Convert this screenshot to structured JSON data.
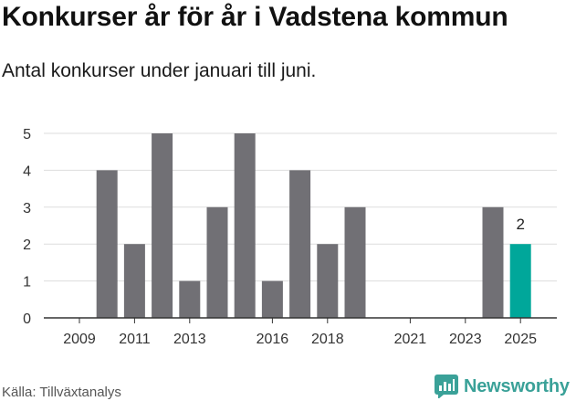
{
  "title": "Konkurser år för år i Vadstena kommun",
  "subtitle": "Antal konkurser under januari till juni.",
  "source": "Källa: Tillväxtanalys",
  "brand": {
    "name": "Newsworthy",
    "icon": "newsworthy-logo-icon"
  },
  "colors": {
    "bar": "#717075",
    "highlight": "#00a79a",
    "grid": "#dddddd",
    "axis": "#333333"
  },
  "chart_data": {
    "type": "bar",
    "x": [
      2009,
      2010,
      2011,
      2012,
      2013,
      2014,
      2015,
      2016,
      2017,
      2018,
      2019,
      2020,
      2021,
      2022,
      2023,
      2024,
      2025
    ],
    "values": [
      0,
      4,
      2,
      5,
      1,
      3,
      5,
      1,
      4,
      2,
      3,
      0,
      0,
      0,
      0,
      3,
      2
    ],
    "x_ticks": [
      2009,
      2011,
      2013,
      2016,
      2018,
      2021,
      2023,
      2025
    ],
    "y_ticks": [
      0,
      1,
      2,
      3,
      4,
      5
    ],
    "ylim": [
      0,
      5
    ],
    "highlight": {
      "x": 2025,
      "label": "2"
    },
    "grid": true,
    "xlabel": "",
    "ylabel": ""
  }
}
